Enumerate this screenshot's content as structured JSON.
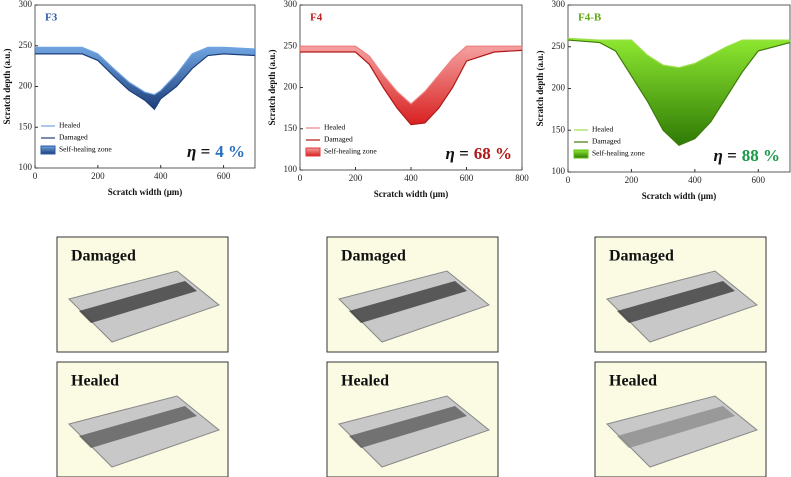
{
  "chart_data": [
    {
      "type": "area",
      "title": "F3",
      "title_color": "#2a5ba8",
      "x": [
        0,
        100,
        150,
        200,
        250,
        300,
        350,
        380,
        400,
        450,
        500,
        550,
        600,
        700
      ],
      "series": [
        {
          "name": "Healed",
          "color": "#6fa3e0",
          "values": [
            248,
            248,
            248,
            240,
            222,
            205,
            193,
            190,
            195,
            215,
            240,
            248,
            248,
            246
          ]
        },
        {
          "name": "Damaged",
          "color": "#1d3f7a",
          "values": [
            240,
            240,
            240,
            232,
            213,
            195,
            183,
            172,
            185,
            200,
            222,
            238,
            240,
            238
          ]
        }
      ],
      "fill_label": "Self-healing zone",
      "fill_color": "#2a5ba8",
      "annotation_prefix": "η =",
      "annotation": "4 %",
      "annotation_color": "#2a6fc0",
      "xlabel": "Scratch width (μm)",
      "ylabel": "Scratch depth (a.u.)",
      "xlim": [
        0,
        700
      ],
      "xticks": [
        0,
        200,
        400,
        600
      ],
      "ylim": [
        100,
        300
      ],
      "yticks": [
        100,
        150,
        200,
        250,
        300
      ]
    },
    {
      "type": "area",
      "title": "F4",
      "title_color": "#c02020",
      "x": [
        0,
        100,
        200,
        250,
        300,
        350,
        400,
        450,
        500,
        550,
        600,
        700,
        800
      ],
      "series": [
        {
          "name": "Healed",
          "color": "#f08080",
          "values": [
            250,
            250,
            250,
            238,
            215,
            195,
            180,
            195,
            215,
            235,
            250,
            250,
            250
          ]
        },
        {
          "name": "Damaged",
          "color": "#b01818",
          "values": [
            243,
            243,
            243,
            228,
            200,
            175,
            155,
            157,
            175,
            200,
            232,
            243,
            245
          ]
        }
      ],
      "fill_label": "Self-healing zone",
      "fill_color": "#e03a3a",
      "annotation_prefix": "η =",
      "annotation": "68 %",
      "annotation_color": "#b01818",
      "xlabel": "Scratch width (μm)",
      "ylabel": "Scratch depth (a.u.)",
      "xlim": [
        0,
        800
      ],
      "xticks": [
        0,
        200,
        400,
        600,
        800
      ],
      "ylim": [
        100,
        300
      ],
      "yticks": [
        100,
        150,
        200,
        250,
        300
      ]
    },
    {
      "type": "area",
      "title": "F4-B",
      "title_color": "#5fa814",
      "x": [
        0,
        100,
        150,
        200,
        250,
        300,
        350,
        400,
        450,
        500,
        550,
        600,
        700
      ],
      "series": [
        {
          "name": "Healed",
          "color": "#9be04a",
          "values": [
            260,
            258,
            258,
            258,
            240,
            228,
            225,
            230,
            240,
            250,
            258,
            258,
            258
          ]
        },
        {
          "name": "Damaged",
          "color": "#3f7a0a",
          "values": [
            258,
            255,
            245,
            215,
            185,
            150,
            132,
            140,
            160,
            190,
            220,
            245,
            255
          ]
        }
      ],
      "fill_label": "Self-healing zone",
      "fill_color": "#5cc010",
      "annotation_prefix": "η =",
      "annotation": "88 %",
      "annotation_color": "#1a9a4a",
      "xlabel": "Scratch width (μm)",
      "ylabel": "Scratch depth (a.u.)",
      "xlim": [
        0,
        700
      ],
      "xticks": [
        0,
        200,
        400,
        600
      ],
      "ylim": [
        100,
        300
      ],
      "yticks": [
        100,
        150,
        200,
        250,
        300
      ]
    }
  ],
  "panels": [
    {
      "label": "Damaged"
    },
    {
      "label": "Healed"
    },
    {
      "label": "Damaged"
    },
    {
      "label": "Healed"
    },
    {
      "label": "Damaged"
    },
    {
      "label": "Healed"
    }
  ]
}
